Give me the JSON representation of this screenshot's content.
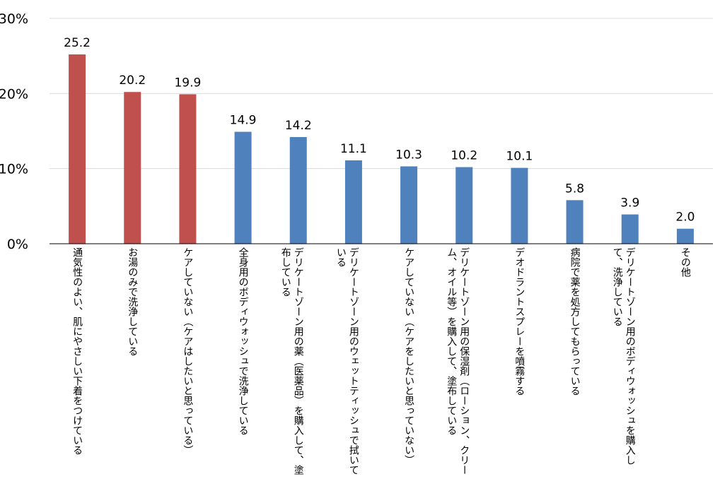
{
  "chart_data": {
    "type": "bar",
    "title": "",
    "xlabel": "",
    "ylabel": "",
    "ylim": [
      0,
      30
    ],
    "yticks": [
      "0%",
      "10%",
      "20%",
      "30%"
    ],
    "grid": true,
    "categories": [
      "通気性のよい、肌にやさしい下着をつけている",
      "お湯のみで洗浄している",
      "ケアしていない（ケアはしたいと思っている）",
      "全身用のボディウォッシュで洗浄している",
      "デリケートゾーン用の薬（医薬品）を購入して、塗布している",
      "デリケートゾーン用のウェットティッシュで拭いている",
      "ケアしていない（ケアをしたいと思っていない）",
      "デリケートゾーン用の保湿剤（ローション、クリーム、オイル等）を購入して、塗布している",
      "デオドラントスプレーを噴霧する",
      "病院で薬を処方してもらっている",
      "デリケートゾーン用のボディウォッシュを購入して、洗浄している",
      "その他"
    ],
    "values": [
      25.2,
      20.2,
      19.9,
      14.9,
      14.2,
      11.1,
      10.3,
      10.2,
      10.1,
      5.8,
      3.9,
      2.0
    ],
    "data_labels": [
      "25.2",
      "20.2",
      "19.9",
      "14.9",
      "14.2",
      "11.1",
      "10.3",
      "10.2",
      "10.1",
      "5.8",
      "3.9",
      "2.0"
    ],
    "colors": {
      "highlight": "#c0504d",
      "default": "#4f81bd",
      "grid": "#d9d9d9",
      "axis": "#000000"
    },
    "highlighted_count": 3
  }
}
